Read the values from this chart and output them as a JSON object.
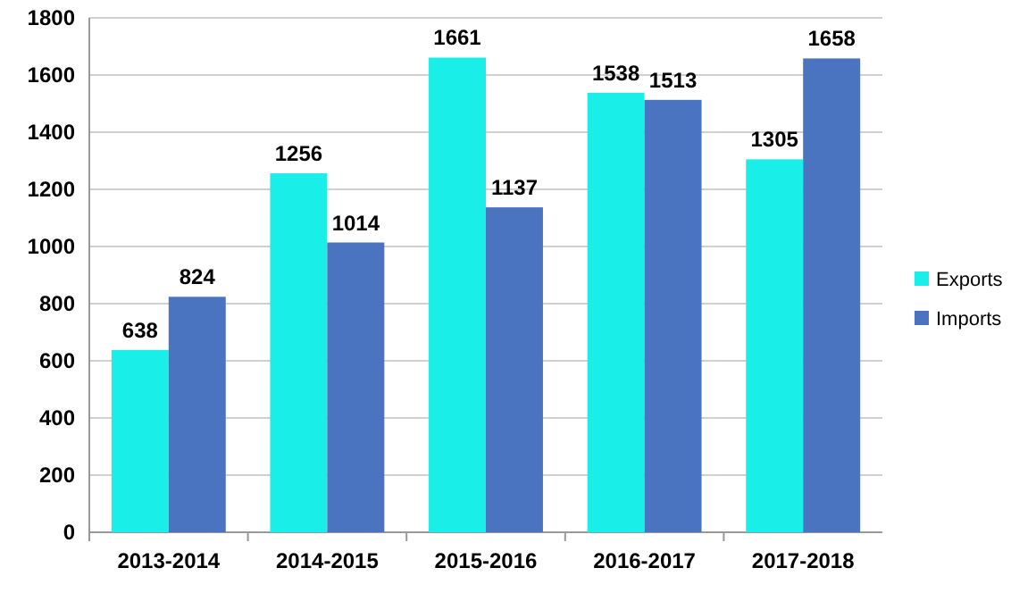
{
  "chart_data": {
    "type": "bar",
    "categories": [
      "2013-2014",
      "2014-2015",
      "2015-2016",
      "2016-2017",
      "2017-2018"
    ],
    "series": [
      {
        "name": "Exports",
        "color": "#19efe8",
        "values": [
          638,
          1256,
          1661,
          1538,
          1305
        ]
      },
      {
        "name": "Imports",
        "color": "#4a74c0",
        "values": [
          824,
          1014,
          1137,
          1513,
          1658
        ]
      }
    ],
    "ylim": [
      0,
      1800
    ],
    "yticks": [
      0,
      200,
      400,
      600,
      800,
      1000,
      1200,
      1400,
      1600,
      1800
    ],
    "grid": "y",
    "legend": "right",
    "data_labels": true
  }
}
